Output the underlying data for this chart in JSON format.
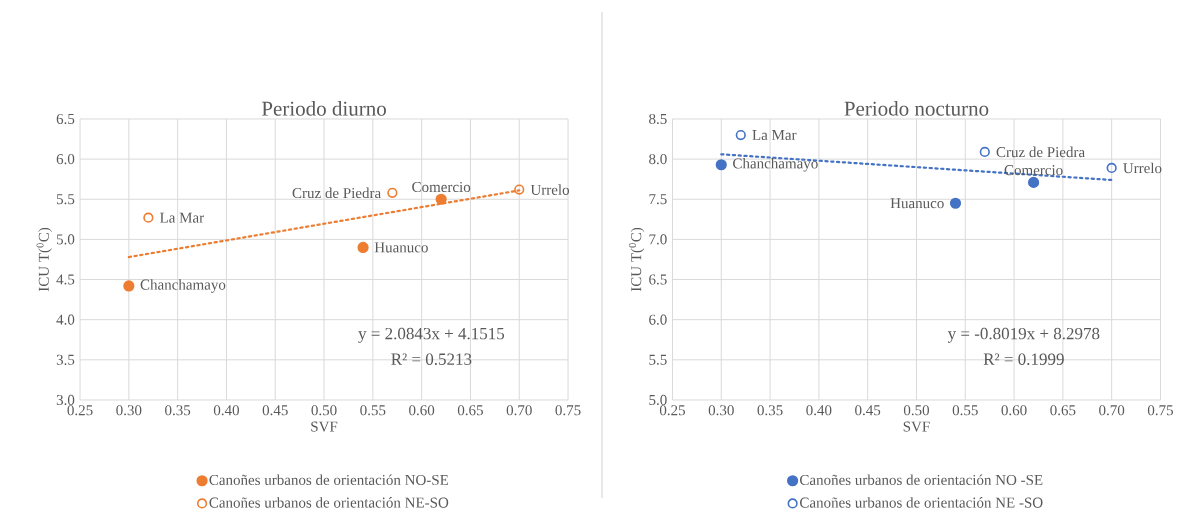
{
  "chart_data": [
    {
      "type": "scatter",
      "title": "Periodo diurno",
      "xlabel": "SVF",
      "ylabel": "ICU T($^{0}$C)",
      "xlim": [
        0.25,
        0.75
      ],
      "xticks": [
        {
          "value": 0.25,
          "label": "0.25"
        },
        {
          "value": 0.3,
          "label": "0.30"
        },
        {
          "value": 0.35,
          "label": "0.35"
        },
        {
          "value": 0.4,
          "label": "0.40"
        },
        {
          "value": 0.45,
          "label": "0.45"
        },
        {
          "value": 0.5,
          "label": "0.50"
        },
        {
          "value": 0.55,
          "label": "0.55"
        },
        {
          "value": 0.6,
          "label": "0.60"
        },
        {
          "value": 0.65,
          "label": "0.65"
        },
        {
          "value": 0.7,
          "label": "0.70"
        },
        {
          "value": 0.75,
          "label": "0.75"
        }
      ],
      "ylim": [
        3.0,
        6.5
      ],
      "yticks": [
        {
          "value": 3.0,
          "label": "3.0"
        },
        {
          "value": 3.5,
          "label": "3.5"
        },
        {
          "value": 4.0,
          "label": "4.0"
        },
        {
          "value": 4.5,
          "label": "4.5"
        },
        {
          "value": 5.0,
          "label": "5.0"
        },
        {
          "value": 5.5,
          "label": "5.5"
        },
        {
          "value": 6.0,
          "label": "6.0"
        },
        {
          "value": 6.5,
          "label": "6.5"
        }
      ],
      "grid": true,
      "legend": "bottom",
      "series": [
        {
          "name": "Canoñes urbanos de orientación NO-SE",
          "color": "#ed7d31",
          "marker": "circle",
          "x": [
            0.3,
            0.54,
            0.62
          ],
          "values": [
            4.42,
            4.9,
            5.5
          ]
        },
        {
          "name": "Canoñes urbanos de orientación NE-SO",
          "color": "#ed7d31",
          "marker": "circle open",
          "x": [
            0.32,
            0.57,
            0.7
          ],
          "values": [
            5.27,
            5.58,
            5.62
          ]
        },
        {
          "type": "line",
          "color": "#ed7d31",
          "line_style": "dotted",
          "marker": "none",
          "x": [
            0.3,
            0.7
          ],
          "values": [
            4.78,
            5.61
          ]
        }
      ],
      "annotations": [
        {
          "text": "Chanchamayo",
          "x": 0.3,
          "y": 4.42
        },
        {
          "text": "Huanuco",
          "x": 0.54,
          "y": 4.9
        },
        {
          "text": "Comercio",
          "x": 0.62,
          "y": 5.5
        },
        {
          "text": "La Mar",
          "x": 0.32,
          "y": 5.27
        },
        {
          "text": "Cruz de Piedra",
          "x": 0.57,
          "y": 5.58
        },
        {
          "text": "Urrelo",
          "x": 0.7,
          "y": 5.62
        },
        "y = 2.0843x + 4.1515",
        "R² = 0.5213"
      ]
    },
    {
      "type": "scatter",
      "title": "Periodo nocturno",
      "xlabel": "SVF",
      "ylabel": "ICU T($^{0}$C)",
      "xlim": [
        0.25,
        0.75
      ],
      "xticks": [
        {
          "value": 0.25,
          "label": "0.25"
        },
        {
          "value": 0.3,
          "label": "0.30"
        },
        {
          "value": 0.35,
          "label": "0.35"
        },
        {
          "value": 0.4,
          "label": "0.40"
        },
        {
          "value": 0.45,
          "label": "0.45"
        },
        {
          "value": 0.5,
          "label": "0.50"
        },
        {
          "value": 0.55,
          "label": "0.55"
        },
        {
          "value": 0.6,
          "label": "0.60"
        },
        {
          "value": 0.65,
          "label": "0.65"
        },
        {
          "value": 0.7,
          "label": "0.70"
        },
        {
          "value": 0.75,
          "label": "0.75"
        }
      ],
      "ylim": [
        5.0,
        8.5
      ],
      "yticks": [
        {
          "value": 5.0,
          "label": "5.0"
        },
        {
          "value": 5.5,
          "label": "5.5"
        },
        {
          "value": 6.0,
          "label": "6.0"
        },
        {
          "value": 6.5,
          "label": "6.5"
        },
        {
          "value": 7.0,
          "label": "7.0"
        },
        {
          "value": 7.5,
          "label": "7.5"
        },
        {
          "value": 8.0,
          "label": "8.0"
        },
        {
          "value": 8.5,
          "label": "8.5"
        }
      ],
      "grid": true,
      "legend": "bottom",
      "series": [
        {
          "name": "Canoñes urbanos de orientación NO -SE",
          "color": "#4472c4",
          "marker": "circle",
          "x": [
            0.3,
            0.54,
            0.62
          ],
          "values": [
            7.93,
            7.45,
            7.71
          ]
        },
        {
          "name": "Canoñes urbanos de orientación NE -SO",
          "color": "#4472c4",
          "marker": "circle open",
          "x": [
            0.32,
            0.57,
            0.7
          ],
          "values": [
            8.3,
            8.09,
            7.89
          ]
        },
        {
          "type": "line",
          "color": "#4472c4",
          "line_style": "dotted",
          "marker": "none",
          "x": [
            0.3,
            0.7
          ],
          "values": [
            8.06,
            7.74
          ]
        }
      ],
      "annotations": [
        {
          "text": "Chanchamayo",
          "x": 0.3,
          "y": 7.93
        },
        {
          "text": "Huanuco",
          "x": 0.54,
          "y": 7.45
        },
        {
          "text": "Comercio",
          "x": 0.62,
          "y": 7.71
        },
        {
          "text": "La Mar",
          "x": 0.32,
          "y": 8.3
        },
        {
          "text": "Cruz de Piedra",
          "x": 0.57,
          "y": 8.09
        },
        {
          "text": "Urrelo",
          "x": 0.7,
          "y": 7.89
        },
        "y = -0.8019x + 8.2978",
        "R² = 0.1999"
      ]
    }
  ]
}
